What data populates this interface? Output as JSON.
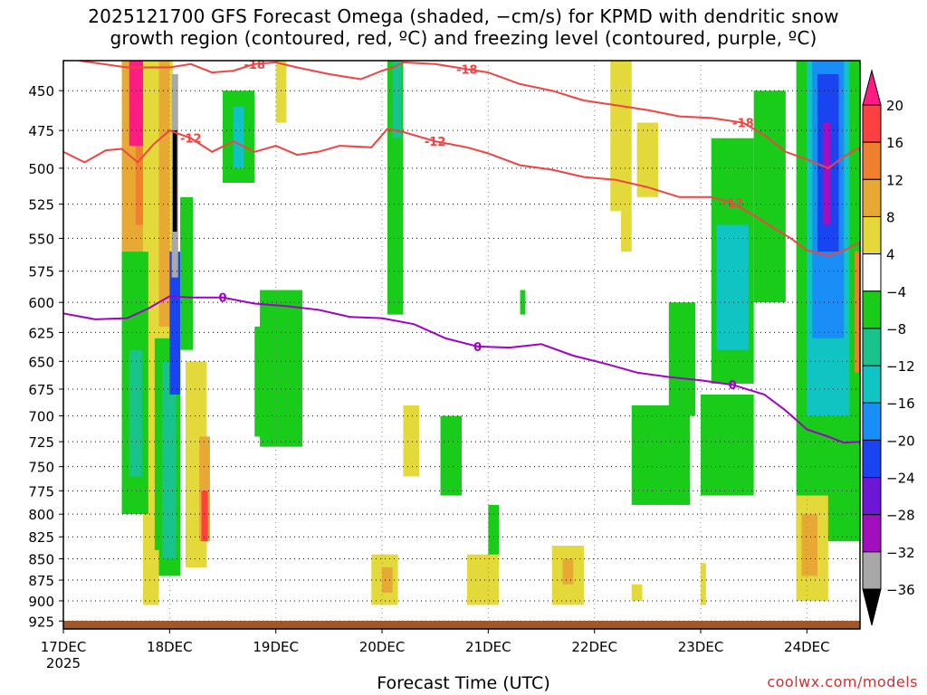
{
  "title": {
    "line1": "2025121700 GFS Forecast Omega (shaded, −cm/s) for KPMD with dendritic snow",
    "line2": "growth region (contoured, red, ºC) and freezing level (contoured, purple, ºC)"
  },
  "credit": "coolwx.com/models",
  "chart_data": {
    "type": "heatmap",
    "title": "2025121700 GFS Forecast Omega (shaded, −cm/s) for KPMD with dendritic snow growth region (contoured, red, ºC) and freezing level (contoured, purple, ºC)",
    "xlabel": "Forecast Time (UTC)",
    "ylabel": "",
    "x_tick_labels": [
      "17DEC",
      "18DEC",
      "19DEC",
      "20DEC",
      "21DEC",
      "22DEC",
      "23DEC",
      "24DEC"
    ],
    "x_year_label": "2025",
    "y_tick_labels": [
      450,
      475,
      500,
      525,
      550,
      575,
      600,
      625,
      650,
      675,
      700,
      725,
      750,
      775,
      800,
      825,
      850,
      875,
      900,
      925
    ],
    "x_range_days": [
      0,
      7.5
    ],
    "y_range_hpa": [
      432,
      935
    ],
    "y_scale": "log",
    "y_reversed": true,
    "grid": true,
    "colorbar": {
      "labels": [
        20,
        16,
        12,
        8,
        4,
        -4,
        -8,
        -12,
        -16,
        -20,
        -24,
        -28,
        -32,
        -36
      ],
      "colors": [
        "#ff1b84",
        "#ff4040",
        "#ef8030",
        "#e8a834",
        "#e3d93a",
        "#ffffff",
        "#19cc19",
        "#1ac38c",
        "#11c4c4",
        "#1a8ef7",
        "#1a44f0",
        "#6c17d6",
        "#a20fbf",
        "#a8a8a8",
        "#000000"
      ]
    },
    "contours": [
      {
        "name": "dendritic growth region",
        "units": "ºC",
        "color": "#ee4444",
        "labels": [
          "-18",
          "-12"
        ]
      },
      {
        "name": "freezing level",
        "units": "ºC",
        "color": "#a000c8",
        "labels": [
          "0"
        ]
      }
    ],
    "contour_series": [
      {
        "label": "-12",
        "color": "#ee4444",
        "points": [
          [
            0,
            489
          ],
          [
            0.2,
            496
          ],
          [
            0.4,
            488
          ],
          [
            0.55,
            487
          ],
          [
            0.7,
            496
          ],
          [
            0.85,
            484
          ],
          [
            1.0,
            475
          ],
          [
            1.2,
            480
          ],
          [
            1.4,
            489
          ],
          [
            1.6,
            482
          ],
          [
            1.8,
            489
          ],
          [
            2.0,
            485
          ],
          [
            2.2,
            491
          ],
          [
            2.4,
            489
          ],
          [
            2.6,
            485
          ],
          [
            2.9,
            486
          ],
          [
            3.05,
            474
          ],
          [
            3.2,
            476
          ],
          [
            3.5,
            482
          ],
          [
            3.8,
            486
          ],
          [
            4.0,
            490
          ],
          [
            4.3,
            498
          ],
          [
            4.6,
            501
          ],
          [
            4.9,
            506
          ],
          [
            5.2,
            508
          ],
          [
            5.5,
            513
          ],
          [
            5.8,
            520
          ],
          [
            6.1,
            520
          ],
          [
            6.3,
            524
          ],
          [
            6.5,
            533
          ],
          [
            6.7,
            543
          ],
          [
            6.85,
            550
          ],
          [
            7.0,
            559
          ],
          [
            7.2,
            563
          ],
          [
            7.35,
            559
          ],
          [
            7.5,
            553
          ]
        ]
      },
      {
        "label": "-18",
        "color": "#ee4444",
        "points": [
          [
            0.15,
            432
          ],
          [
            0.6,
            436
          ],
          [
            1.0,
            436
          ],
          [
            1.2,
            434
          ],
          [
            1.4,
            439
          ],
          [
            1.6,
            438
          ],
          [
            1.8,
            434
          ],
          [
            2.0,
            433
          ],
          [
            2.2,
            436
          ],
          [
            2.5,
            440
          ],
          [
            2.8,
            443
          ],
          [
            3.0,
            438
          ],
          [
            3.1,
            436
          ],
          [
            3.2,
            433
          ],
          [
            3.5,
            434
          ],
          [
            3.8,
            437
          ],
          [
            4.0,
            439
          ],
          [
            4.3,
            446
          ],
          [
            4.6,
            450
          ],
          [
            4.9,
            456
          ],
          [
            5.2,
            459
          ],
          [
            5.5,
            462
          ],
          [
            5.8,
            466
          ],
          [
            6.1,
            467
          ],
          [
            6.4,
            470
          ],
          [
            6.6,
            478
          ],
          [
            6.8,
            489
          ],
          [
            7.0,
            494
          ],
          [
            7.2,
            500
          ],
          [
            7.35,
            492
          ],
          [
            7.5,
            486
          ]
        ]
      },
      {
        "label": "0",
        "color": "#a000c8",
        "points": [
          [
            0,
            609
          ],
          [
            0.3,
            614
          ],
          [
            0.6,
            613
          ],
          [
            0.8,
            605
          ],
          [
            1.0,
            595
          ],
          [
            1.2,
            596
          ],
          [
            1.5,
            596
          ],
          [
            1.8,
            601
          ],
          [
            2.1,
            603
          ],
          [
            2.4,
            606
          ],
          [
            2.7,
            612
          ],
          [
            3.0,
            613
          ],
          [
            3.3,
            618
          ],
          [
            3.6,
            630
          ],
          [
            3.9,
            637
          ],
          [
            4.2,
            638
          ],
          [
            4.5,
            635
          ],
          [
            4.8,
            645
          ],
          [
            5.1,
            652
          ],
          [
            5.4,
            660
          ],
          [
            5.7,
            664
          ],
          [
            6.0,
            667
          ],
          [
            6.3,
            671
          ],
          [
            6.6,
            680
          ],
          [
            6.8,
            695
          ],
          [
            7.0,
            713
          ],
          [
            7.2,
            720
          ],
          [
            7.35,
            726
          ],
          [
            7.5,
            725
          ]
        ]
      }
    ],
    "omega_regions": [
      {
        "x": [
          0.55,
          0.85
        ],
        "p": [
          432,
          600
        ],
        "v": 8
      },
      {
        "x": [
          0.62,
          0.8
        ],
        "p": [
          432,
          485
        ],
        "v": 22
      },
      {
        "x": [
          0.68,
          0.82
        ],
        "p": [
          485,
          540
        ],
        "v": 14
      },
      {
        "x": [
          0.75,
          1.03
        ],
        "p": [
          432,
          860
        ],
        "v": 6
      },
      {
        "x": [
          0.9,
          1.0
        ],
        "p": [
          432,
          620
        ],
        "v": 10
      },
      {
        "x": [
          0.86,
          1.1
        ],
        "p": [
          630,
          870
        ],
        "v": -8
      },
      {
        "x": [
          0.93,
          1.06
        ],
        "p": [
          650,
          850
        ],
        "v": -12
      },
      {
        "x": [
          1.0,
          1.1
        ],
        "p": [
          560,
          680
        ],
        "v": -22
      },
      {
        "x": [
          1.02,
          1.08
        ],
        "p": [
          440,
          580
        ],
        "v": -34
      },
      {
        "x": [
          1.03,
          1.07
        ],
        "p": [
          475,
          545
        ],
        "v": -40
      },
      {
        "x": [
          1.1,
          1.22
        ],
        "p": [
          520,
          640
        ],
        "v": -8
      },
      {
        "x": [
          1.15,
          1.35
        ],
        "p": [
          650,
          860
        ],
        "v": 6
      },
      {
        "x": [
          1.28,
          1.38
        ],
        "p": [
          720,
          830
        ],
        "v": 10
      },
      {
        "x": [
          1.3,
          1.36
        ],
        "p": [
          775,
          830
        ],
        "v": 18
      },
      {
        "x": [
          0.55,
          0.8
        ],
        "p": [
          560,
          800
        ],
        "v": -8
      },
      {
        "x": [
          0.62,
          0.74
        ],
        "p": [
          640,
          760
        ],
        "v": -12
      },
      {
        "x": [
          1.5,
          1.8
        ],
        "p": [
          450,
          510
        ],
        "v": -8
      },
      {
        "x": [
          1.6,
          1.7
        ],
        "p": [
          460,
          500
        ],
        "v": -14
      },
      {
        "x": [
          1.8,
          2.05
        ],
        "p": [
          620,
          720
        ],
        "v": -6
      },
      {
        "x": [
          1.85,
          2.25
        ],
        "p": [
          590,
          730
        ],
        "v": -6
      },
      {
        "x": [
          2.0,
          2.1
        ],
        "p": [
          432,
          470
        ],
        "v": 6
      },
      {
        "x": [
          3.05,
          3.2
        ],
        "p": [
          432,
          610
        ],
        "v": -7
      },
      {
        "x": [
          3.1,
          3.18
        ],
        "p": [
          432,
          480
        ],
        "v": -12
      },
      {
        "x": [
          3.2,
          3.35
        ],
        "p": [
          690,
          760
        ],
        "v": 6
      },
      {
        "x": [
          2.9,
          3.15
        ],
        "p": [
          845,
          905
        ],
        "v": 6
      },
      {
        "x": [
          3.0,
          3.1
        ],
        "p": [
          860,
          890
        ],
        "v": 10
      },
      {
        "x": [
          3.55,
          3.75
        ],
        "p": [
          700,
          780
        ],
        "v": -7
      },
      {
        "x": [
          4.0,
          4.1
        ],
        "p": [
          790,
          860
        ],
        "v": -7
      },
      {
        "x": [
          4.3,
          4.35
        ],
        "p": [
          590,
          610
        ],
        "v": -7
      },
      {
        "x": [
          5.15,
          5.35
        ],
        "p": [
          432,
          530
        ],
        "v": 6
      },
      {
        "x": [
          5.4,
          5.6
        ],
        "p": [
          470,
          520
        ],
        "v": 6
      },
      {
        "x": [
          5.35,
          5.9
        ],
        "p": [
          690,
          790
        ],
        "v": -7
      },
      {
        "x": [
          5.7,
          5.95
        ],
        "p": [
          600,
          700
        ],
        "v": -7
      },
      {
        "x": [
          6.1,
          6.5
        ],
        "p": [
          480,
          670
        ],
        "v": -8
      },
      {
        "x": [
          6.15,
          6.45
        ],
        "p": [
          540,
          640
        ],
        "v": -13
      },
      {
        "x": [
          6.0,
          6.5
        ],
        "p": [
          680,
          780
        ],
        "v": -7
      },
      {
        "x": [
          6.5,
          6.8
        ],
        "p": [
          450,
          600
        ],
        "v": -7
      },
      {
        "x": [
          6.9,
          7.5
        ],
        "p": [
          432,
          830
        ],
        "v": -8
      },
      {
        "x": [
          7.0,
          7.4
        ],
        "p": [
          432,
          700
        ],
        "v": -13
      },
      {
        "x": [
          7.05,
          7.35
        ],
        "p": [
          432,
          630
        ],
        "v": -18
      },
      {
        "x": [
          7.1,
          7.3
        ],
        "p": [
          440,
          560
        ],
        "v": -24
      },
      {
        "x": [
          7.15,
          7.22
        ],
        "p": [
          470,
          540
        ],
        "v": -30
      },
      {
        "x": [
          6.9,
          7.2
        ],
        "p": [
          780,
          900
        ],
        "v": 6
      },
      {
        "x": [
          6.95,
          7.1
        ],
        "p": [
          800,
          870
        ],
        "v": 10
      },
      {
        "x": [
          7.45,
          7.5
        ],
        "p": [
          560,
          660
        ],
        "v": 12
      },
      {
        "x": [
          3.8,
          4.1
        ],
        "p": [
          845,
          905
        ],
        "v": 6
      },
      {
        "x": [
          4.6,
          4.9
        ],
        "p": [
          835,
          905
        ],
        "v": 6
      },
      {
        "x": [
          4.7,
          4.8
        ],
        "p": [
          850,
          880
        ],
        "v": 10
      },
      {
        "x": [
          5.35,
          5.45
        ],
        "p": [
          880,
          900
        ],
        "v": 6
      },
      {
        "x": [
          6.0,
          6.05
        ],
        "p": [
          855,
          905
        ],
        "v": 6
      },
      {
        "x": [
          0.75,
          0.9
        ],
        "p": [
          840,
          905
        ],
        "v": 6
      },
      {
        "x": [
          5.25,
          5.35
        ],
        "p": [
          530,
          560
        ],
        "v": 6
      }
    ],
    "surface_color": "#a0582a"
  }
}
